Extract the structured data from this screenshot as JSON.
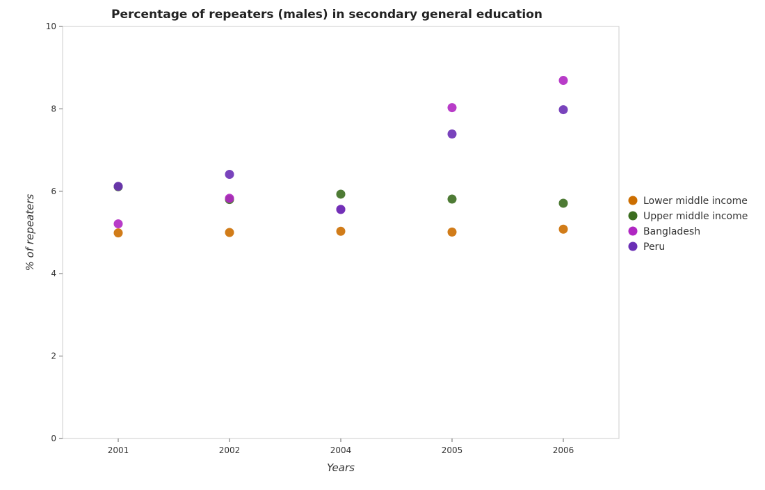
{
  "chart_data": {
    "type": "scatter",
    "title": "Percentage of repeaters (males) in secondary general education",
    "xlabel": "Years",
    "ylabel": "% of repeaters",
    "categories": [
      "2001",
      "2002",
      "2004",
      "2005",
      "2006"
    ],
    "ylim": [
      0,
      10
    ],
    "yticks": [
      "0",
      "2",
      "4",
      "6",
      "8",
      "10"
    ],
    "grid": false,
    "legend_position": "right",
    "series": [
      {
        "name": "Lower middle income",
        "color": "#cc6e00",
        "values": [
          4.99,
          5.0,
          5.03,
          5.01,
          5.08
        ]
      },
      {
        "name": "Upper middle income",
        "color": "#3b6d1f",
        "values": [
          6.11,
          5.8,
          5.93,
          5.81,
          5.71
        ]
      },
      {
        "name": "Bangladesh",
        "color": "#b027c2",
        "values": [
          5.21,
          5.83,
          5.56,
          8.03,
          8.69
        ]
      },
      {
        "name": "Peru",
        "color": "#6a2fb5",
        "values": [
          6.12,
          6.41,
          5.56,
          7.39,
          7.98
        ]
      }
    ]
  }
}
